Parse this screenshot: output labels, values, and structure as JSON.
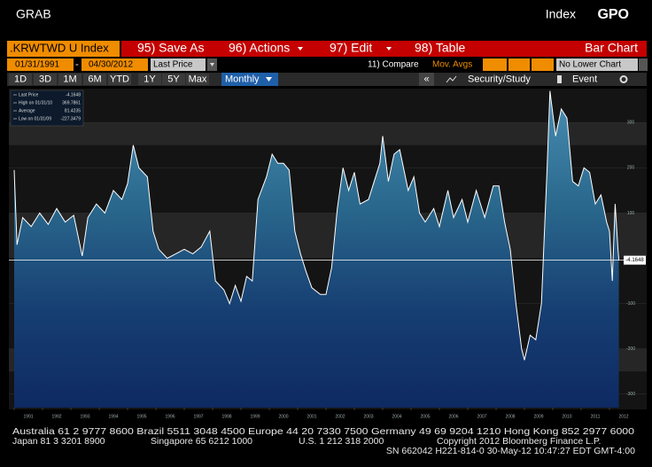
{
  "header": {
    "left": "GRAB",
    "right_label": "Index",
    "function": "GPO"
  },
  "toolbar": {
    "ticker": ".KRWTWD U Index",
    "menu": [
      "95) Save As",
      "96) Actions",
      "97) Edit",
      "98) Table"
    ],
    "chart_type": "Bar Chart",
    "start_date": "01/31/1991",
    "separator": "-",
    "end_date": "04/30/2012",
    "field": "Last Price",
    "compare": "11) Compare",
    "mov_avgs": "Mov. Avgs",
    "lower_chart": "No Lower Chart",
    "ranges": [
      "1D",
      "3D",
      "1M",
      "6M",
      "YTD",
      "1Y",
      "5Y",
      "Max"
    ],
    "period": "Monthly",
    "collapse": "«",
    "study": "Security/Study",
    "event": "Event"
  },
  "chart_data": {
    "type": "area",
    "stats": [
      {
        "label": "Last Price",
        "value": -4.1648
      },
      {
        "label": "High on 01/31/10",
        "value": 369.7861
      },
      {
        "label": "Average",
        "value": 81.4235
      },
      {
        "label": "Low on 01/31/09",
        "value": -227.3479
      }
    ],
    "x": [
      1991.0,
      1991.1,
      1991.3,
      1991.6,
      1991.9,
      1992.2,
      1992.5,
      1992.8,
      1993.1,
      1993.4,
      1993.6,
      1993.9,
      1994.2,
      1994.5,
      1994.8,
      1995.0,
      1995.2,
      1995.4,
      1995.7,
      1995.9,
      1996.1,
      1996.4,
      1996.7,
      1997.0,
      1997.3,
      1997.6,
      1997.9,
      1998.1,
      1998.4,
      1998.6,
      1998.8,
      1999.0,
      1999.2,
      1999.4,
      1999.6,
      1999.9,
      2000.1,
      2000.3,
      2000.5,
      2000.7,
      2000.9,
      2001.1,
      2001.3,
      2001.5,
      2001.8,
      2002.0,
      2002.2,
      2002.4,
      2002.6,
      2002.8,
      2003.0,
      2003.2,
      2003.5,
      2003.7,
      2003.9,
      2004.0,
      2004.2,
      2004.4,
      2004.6,
      2004.9,
      2005.1,
      2005.3,
      2005.5,
      2005.8,
      2006.0,
      2006.3,
      2006.5,
      2006.8,
      2007.0,
      2007.3,
      2007.6,
      2007.9,
      2008.1,
      2008.3,
      2008.5,
      2008.7,
      2008.9,
      2009.0,
      2009.2,
      2009.4,
      2009.6,
      2009.8,
      2009.9,
      2010.1,
      2010.3,
      2010.5,
      2010.7,
      2010.9,
      2011.1,
      2011.3,
      2011.5,
      2011.7,
      2011.9,
      2012.0,
      2012.1,
      2012.2,
      2012.3,
      2012.33
    ],
    "values": [
      195,
      30,
      90,
      70,
      100,
      75,
      110,
      80,
      95,
      5,
      90,
      120,
      100,
      150,
      130,
      165,
      250,
      200,
      180,
      60,
      20,
      0,
      10,
      20,
      10,
      25,
      60,
      -50,
      -70,
      -100,
      -60,
      -95,
      -40,
      -50,
      130,
      180,
      230,
      210,
      210,
      195,
      60,
      10,
      -30,
      -65,
      -80,
      -80,
      -20,
      110,
      200,
      150,
      190,
      120,
      130,
      170,
      210,
      270,
      170,
      230,
      240,
      150,
      180,
      100,
      80,
      110,
      70,
      150,
      90,
      130,
      80,
      150,
      90,
      160,
      160,
      80,
      20,
      -100,
      -200,
      -225,
      -170,
      -180,
      -100,
      200,
      370,
      270,
      330,
      310,
      170,
      160,
      200,
      190,
      120,
      140,
      80,
      60,
      -50,
      120,
      20,
      -4.1648
    ],
    "color": "#ffffff",
    "xlim": [
      1991,
      2012.4
    ],
    "xticks": [
      1991,
      1992,
      1993,
      1994,
      1995,
      1996,
      1997,
      1998,
      1999,
      2000,
      2001,
      2002,
      2003,
      2004,
      2005,
      2006,
      2007,
      2008,
      2009,
      2010,
      2011,
      2012
    ],
    "ylim": [
      -330,
      375
    ],
    "yticks": [
      -300,
      -200,
      -100,
      100,
      200,
      300
    ],
    "grid": true
  },
  "footer": {
    "line1": "Australia 61 2 9777 8600 Brazil 5511 3048 4500 Europe 44 20 7330 7500 Germany 49 69 9204 1210 Hong Kong 852 2977 6000",
    "line2": [
      "Japan 81 3 3201 8900",
      "Singapore 65 6212 1000",
      "U.S. 1 212 318 2000",
      "Copyright 2012 Bloomberg Finance L.P."
    ],
    "line3": "SN 662042 H221-814-0 30-May-12 10:47:27 EDT  GMT-4:00"
  }
}
